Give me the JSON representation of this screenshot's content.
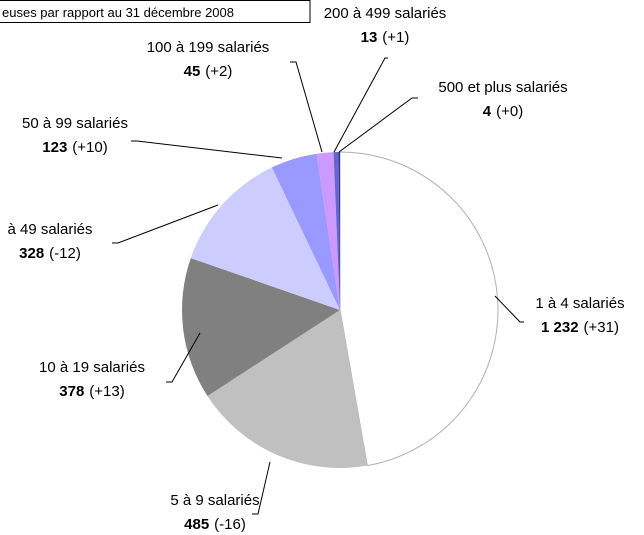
{
  "chart_data": {
    "type": "pie",
    "title": "euses par rapport au 31 décembre 2008",
    "categories": [
      "1 à 4 salariés",
      "5 à 9 salariés",
      "10 à 19 salariés",
      "à 49 salariés",
      "50 à 99 salariés",
      "100 à 199 salariés",
      "200 à 499 salariés",
      "500 et plus salariés"
    ],
    "values": [
      1232,
      485,
      378,
      328,
      123,
      45,
      13,
      4
    ],
    "value_labels": [
      "1 232",
      "485",
      "378",
      "328",
      "123",
      "45",
      "13",
      "4"
    ],
    "change_labels": [
      "(+31)",
      "(-16)",
      "(+13)",
      "(-12)",
      "(+10)",
      "(+2)",
      "(+1)",
      "(+0)"
    ],
    "colors": [
      "#ffffff",
      "#c0c0c0",
      "#808080",
      "#ccccff",
      "#9999ff",
      "#cc99ff",
      "#6666cc",
      "#333399"
    ]
  }
}
